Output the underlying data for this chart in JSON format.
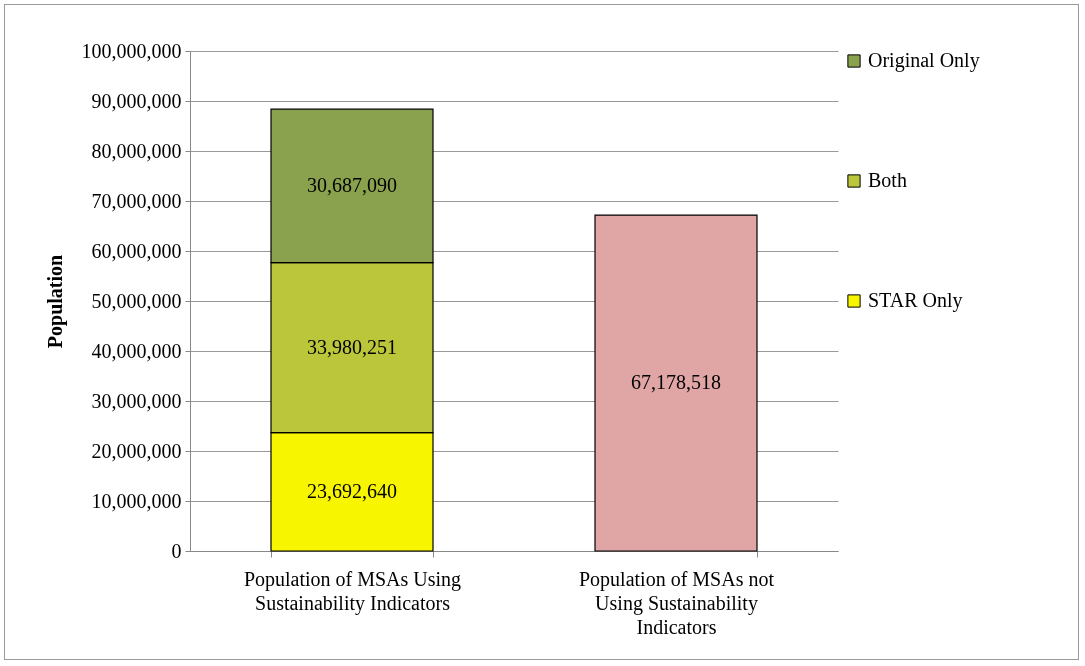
{
  "chart_data": {
    "type": "bar",
    "stacked": true,
    "categories": [
      "Population of MSAs Using Sustainability Indicators",
      "Population of MSAs not Using Sustainability Indicators"
    ],
    "ylabel": "Population",
    "series": [
      {
        "name": "STAR Only",
        "color": "#f8f500",
        "values": [
          23692640,
          null
        ],
        "value_labels": [
          "23,692,640",
          null
        ]
      },
      {
        "name": "Both",
        "color": "#bcc63a",
        "values": [
          33980251,
          null
        ],
        "value_labels": [
          "33,980,251",
          null
        ]
      },
      {
        "name": "Original Only",
        "color": "#8aa24e",
        "values": [
          30687090,
          null
        ],
        "value_labels": [
          "30,687,090",
          null
        ]
      },
      {
        "color": "#e0a6a6",
        "values": [
          null,
          67178518
        ],
        "value_labels": [
          null,
          "67,178,518"
        ]
      }
    ],
    "ylim": [
      0,
      100000000
    ],
    "yticks": [
      {
        "value": 0,
        "label": "0"
      },
      {
        "value": 10000000,
        "label": "10,000,000"
      },
      {
        "value": 20000000,
        "label": "20,000,000"
      },
      {
        "value": 30000000,
        "label": "30,000,000"
      },
      {
        "value": 40000000,
        "label": "40,000,000"
      },
      {
        "value": 50000000,
        "label": "50,000,000"
      },
      {
        "value": 60000000,
        "label": "60,000,000"
      },
      {
        "value": 70000000,
        "label": "70,000,000"
      },
      {
        "value": 80000000,
        "label": "80,000,000"
      },
      {
        "value": 90000000,
        "label": "90,000,000"
      },
      {
        "value": 100000000,
        "label": "100,000,000"
      }
    ],
    "grid": "y",
    "legend": "right"
  }
}
